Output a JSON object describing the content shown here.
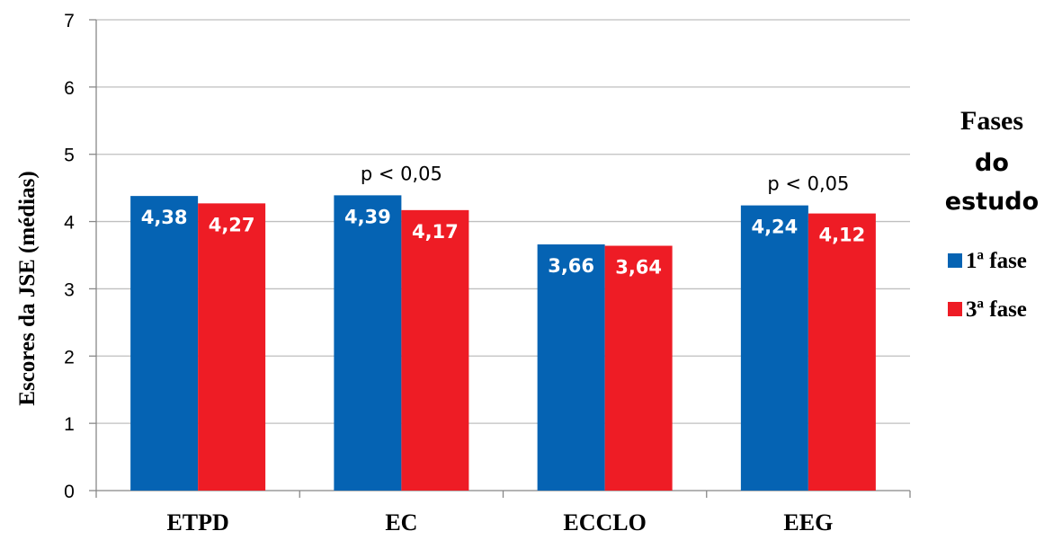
{
  "chart_data": {
    "type": "bar",
    "categories": [
      "ETPD",
      "EC",
      "ECCLO",
      "EEG"
    ],
    "series": [
      {
        "name": "1ª fase",
        "values": [
          4.38,
          4.39,
          3.66,
          4.24
        ],
        "labels": [
          "4,38",
          "4,39",
          "3,66",
          "4,24"
        ],
        "color": "#0563b3"
      },
      {
        "name": "3ª fase",
        "values": [
          4.27,
          4.17,
          3.64,
          4.12
        ],
        "labels": [
          "4,27",
          "4,17",
          "3,64",
          "4,12"
        ],
        "color": "#ee1c25"
      }
    ],
    "ylabel": "Escores da JSE (médias)",
    "xlabel": "",
    "ylim": [
      0,
      7
    ],
    "yticks": [
      0,
      1,
      2,
      3,
      4,
      5,
      6,
      7
    ],
    "grid": true,
    "legend": {
      "title_lines": [
        "Fases",
        "do",
        "estudo"
      ],
      "placement": "right"
    },
    "annotations": [
      {
        "category": "EC",
        "text": "p < 0,05"
      },
      {
        "category": "EEG",
        "text": "p < 0,05"
      }
    ]
  }
}
